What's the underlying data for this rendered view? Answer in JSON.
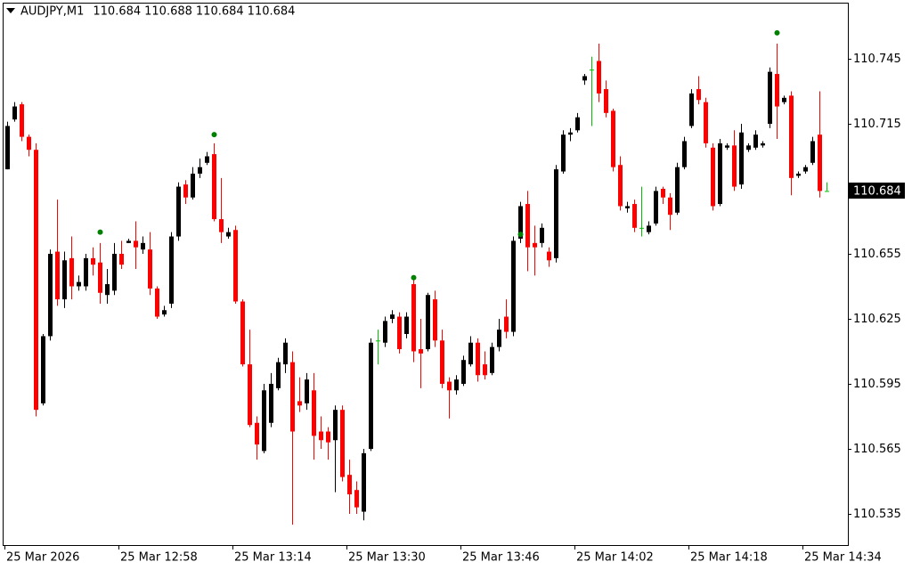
{
  "chart_data": {
    "type": "candlestick",
    "title": "AUDJPY,M1",
    "up_color": "#000000",
    "down_color": "#ff0000",
    "doji_color": "#00c000",
    "ylim": [
      110.5206,
      110.7709
    ],
    "yticks": [
      110.535,
      110.565,
      110.595,
      110.625,
      110.655,
      110.685,
      110.715,
      110.745
    ],
    "categories": [
      "25 Mar 2026",
      null,
      null,
      null,
      null,
      null,
      null,
      null,
      null,
      null,
      null,
      null,
      null,
      null,
      null,
      null,
      "25 Mar 12:58",
      null,
      null,
      null,
      null,
      null,
      null,
      null,
      null,
      null,
      null,
      null,
      null,
      null,
      null,
      null,
      "25 Mar 13:14",
      null,
      null,
      null,
      null,
      null,
      null,
      null,
      null,
      null,
      null,
      null,
      null,
      null,
      null,
      null,
      "25 Mar 13:30",
      null,
      null,
      null,
      null,
      null,
      null,
      null,
      null,
      null,
      null,
      null,
      null,
      null,
      null,
      null,
      "25 Mar 13:46",
      null,
      null,
      null,
      null,
      null,
      null,
      null,
      null,
      null,
      null,
      null,
      null,
      null,
      null,
      null,
      "25 Mar 14:02",
      null,
      null,
      null,
      null,
      null,
      null,
      null,
      null,
      null,
      null,
      null,
      null,
      null,
      null,
      null,
      "25 Mar 14:18",
      null,
      null,
      null,
      null,
      null,
      null,
      null,
      null,
      null,
      null,
      null,
      null,
      null,
      null,
      null,
      "25 Mar 14:34",
      null,
      null,
      null
    ],
    "open": [
      110.694,
      110.717,
      110.724,
      110.709,
      110.703,
      110.586,
      110.617,
      110.656,
      110.634,
      110.653,
      110.64,
      110.64,
      110.653,
      110.651,
      110.636,
      110.638,
      110.655,
      110.66,
      110.661,
      110.657,
      110.657,
      110.639,
      110.627,
      110.632,
      110.663,
      110.687,
      110.681,
      110.692,
      110.697,
      110.701,
      110.671,
      110.663,
      110.666,
      110.633,
      110.604,
      110.577,
      110.564,
      110.577,
      110.593,
      110.604,
      110.605,
      110.587,
      110.586,
      110.592,
      110.573,
      110.573,
      110.569,
      110.583,
      110.553,
      110.546,
      110.536,
      110.565,
      110.615,
      110.614,
      110.625,
      110.626,
      110.618,
      110.641,
      110.611,
      110.611,
      110.634,
      110.615,
      110.596,
      110.592,
      110.595,
      110.604,
      110.614,
      110.604,
      110.6,
      110.612,
      110.626,
      110.619,
      110.662,
      110.678,
      110.66,
      110.66,
      110.656,
      110.653,
      110.693,
      110.71,
      110.712,
      110.735,
      110.74,
      110.744,
      110.731,
      110.721,
      110.696,
      110.676,
      110.678,
      110.667,
      110.665,
      110.669,
      110.685,
      110.681,
      110.674,
      110.695,
      110.714,
      110.731,
      110.725,
      110.704,
      110.678,
      110.704,
      110.705,
      110.687,
      110.703,
      110.704,
      110.705,
      110.715,
      110.738,
      110.725,
      110.728,
      110.691,
      110.693,
      110.697,
      110.71,
      110.684
    ],
    "high": [
      110.716,
      110.725,
      110.725,
      110.71,
      110.706,
      110.618,
      110.657,
      110.68,
      110.656,
      110.663,
      110.645,
      110.655,
      110.658,
      110.66,
      110.648,
      110.66,
      110.661,
      110.662,
      110.67,
      110.663,
      110.665,
      110.64,
      110.631,
      110.665,
      110.688,
      110.689,
      110.695,
      110.699,
      110.702,
      110.706,
      110.69,
      110.667,
      110.668,
      110.634,
      110.62,
      110.58,
      110.595,
      110.6,
      110.607,
      110.616,
      110.61,
      110.598,
      110.6,
      110.6,
      110.58,
      110.575,
      110.585,
      110.585,
      110.56,
      110.55,
      110.565,
      110.616,
      110.62,
      110.626,
      110.629,
      110.628,
      110.628,
      110.643,
      110.625,
      110.637,
      110.638,
      110.62,
      110.598,
      110.599,
      110.608,
      110.617,
      110.616,
      110.61,
      110.614,
      110.625,
      110.634,
      110.663,
      110.679,
      110.684,
      110.668,
      110.669,
      110.658,
      110.696,
      110.712,
      110.713,
      110.72,
      110.738,
      110.746,
      110.752,
      110.735,
      110.722,
      110.7,
      110.679,
      110.68,
      110.686,
      110.67,
      110.686,
      110.686,
      110.683,
      110.697,
      110.709,
      110.731,
      110.737,
      110.727,
      110.706,
      110.708,
      110.706,
      110.712,
      110.715,
      110.706,
      110.712,
      110.707,
      110.741,
      110.752,
      110.728,
      110.73,
      110.693,
      110.696,
      110.709,
      110.73,
      110.688
    ],
    "low": [
      110.694,
      110.716,
      110.707,
      110.7,
      110.58,
      110.585,
      110.615,
      110.631,
      110.63,
      110.634,
      110.638,
      110.638,
      110.645,
      110.632,
      110.632,
      110.636,
      110.648,
      110.66,
      110.648,
      110.655,
      110.636,
      110.625,
      110.626,
      110.63,
      110.661,
      110.678,
      110.68,
      110.69,
      110.696,
      110.67,
      110.66,
      110.662,
      110.632,
      110.603,
      110.575,
      110.56,
      110.563,
      110.575,
      110.592,
      110.6,
      110.53,
      110.582,
      110.583,
      110.56,
      110.565,
      110.56,
      110.545,
      110.55,
      110.535,
      110.535,
      110.532,
      110.564,
      110.604,
      110.612,
      110.623,
      110.609,
      110.616,
      110.605,
      110.593,
      110.61,
      110.612,
      110.593,
      110.579,
      110.59,
      110.594,
      110.603,
      110.596,
      110.597,
      110.599,
      110.61,
      110.616,
      110.617,
      110.66,
      110.647,
      110.645,
      110.658,
      110.649,
      110.651,
      110.692,
      110.707,
      110.711,
      110.733,
      110.714,
      110.725,
      110.718,
      110.693,
      110.675,
      110.674,
      110.665,
      110.663,
      110.664,
      110.668,
      110.678,
      110.666,
      110.673,
      110.694,
      110.713,
      110.724,
      110.704,
      110.675,
      110.677,
      110.703,
      110.684,
      110.685,
      110.702,
      110.703,
      110.704,
      110.713,
      110.708,
      110.724,
      110.682,
      110.69,
      110.692,
      110.696,
      110.681,
      110.684
    ],
    "close": [
      110.714,
      110.723,
      110.709,
      110.703,
      110.583,
      110.617,
      110.655,
      110.634,
      110.652,
      110.64,
      110.642,
      110.653,
      110.65,
      110.637,
      110.641,
      110.655,
      110.65,
      110.661,
      110.658,
      110.66,
      110.639,
      110.626,
      110.629,
      110.663,
      110.686,
      110.681,
      110.692,
      110.695,
      110.7,
      110.671,
      110.665,
      110.665,
      110.633,
      110.604,
      110.576,
      110.567,
      110.592,
      110.595,
      110.605,
      110.614,
      110.573,
      110.585,
      110.597,
      110.571,
      110.569,
      110.568,
      110.583,
      110.552,
      110.544,
      110.538,
      110.563,
      110.614,
      110.615,
      110.624,
      110.627,
      110.611,
      110.626,
      110.61,
      110.609,
      110.636,
      110.615,
      110.595,
      110.592,
      110.597,
      110.606,
      110.614,
      110.599,
      110.599,
      110.612,
      110.62,
      110.619,
      110.661,
      110.677,
      110.658,
      110.658,
      110.667,
      110.652,
      110.694,
      110.71,
      110.711,
      110.718,
      110.737,
      110.74,
      110.729,
      110.72,
      110.695,
      110.677,
      110.677,
      110.667,
      110.667,
      110.668,
      110.684,
      110.681,
      110.673,
      110.695,
      110.707,
      110.729,
      110.726,
      110.706,
      110.677,
      110.706,
      110.705,
      110.686,
      110.711,
      110.705,
      110.71,
      110.706,
      110.739,
      110.723,
      110.727,
      110.69,
      110.692,
      110.695,
      110.707,
      110.684,
      110.684
    ],
    "fractals": {
      "color": "#008000",
      "values": [
        null,
        null,
        null,
        null,
        null,
        null,
        null,
        null,
        null,
        null,
        null,
        null,
        null,
        110.665,
        null,
        null,
        null,
        null,
        null,
        null,
        null,
        null,
        null,
        null,
        null,
        null,
        null,
        null,
        null,
        110.71,
        null,
        null,
        null,
        null,
        null,
        null,
        null,
        null,
        null,
        null,
        null,
        null,
        null,
        null,
        null,
        null,
        null,
        null,
        null,
        null,
        null,
        null,
        null,
        null,
        null,
        null,
        null,
        110.644,
        null,
        null,
        null,
        null,
        null,
        null,
        null,
        null,
        null,
        null,
        null,
        null,
        null,
        null,
        110.664,
        null,
        null,
        null,
        null,
        null,
        null,
        null,
        null,
        null,
        null,
        null,
        null,
        null,
        null,
        null,
        null,
        null,
        null,
        null,
        null,
        null,
        null,
        null,
        null,
        null,
        null,
        null,
        null,
        null,
        null,
        null,
        null,
        null,
        null,
        null,
        110.757,
        null,
        null,
        null,
        null,
        null,
        null,
        null
      ]
    }
  }
}
